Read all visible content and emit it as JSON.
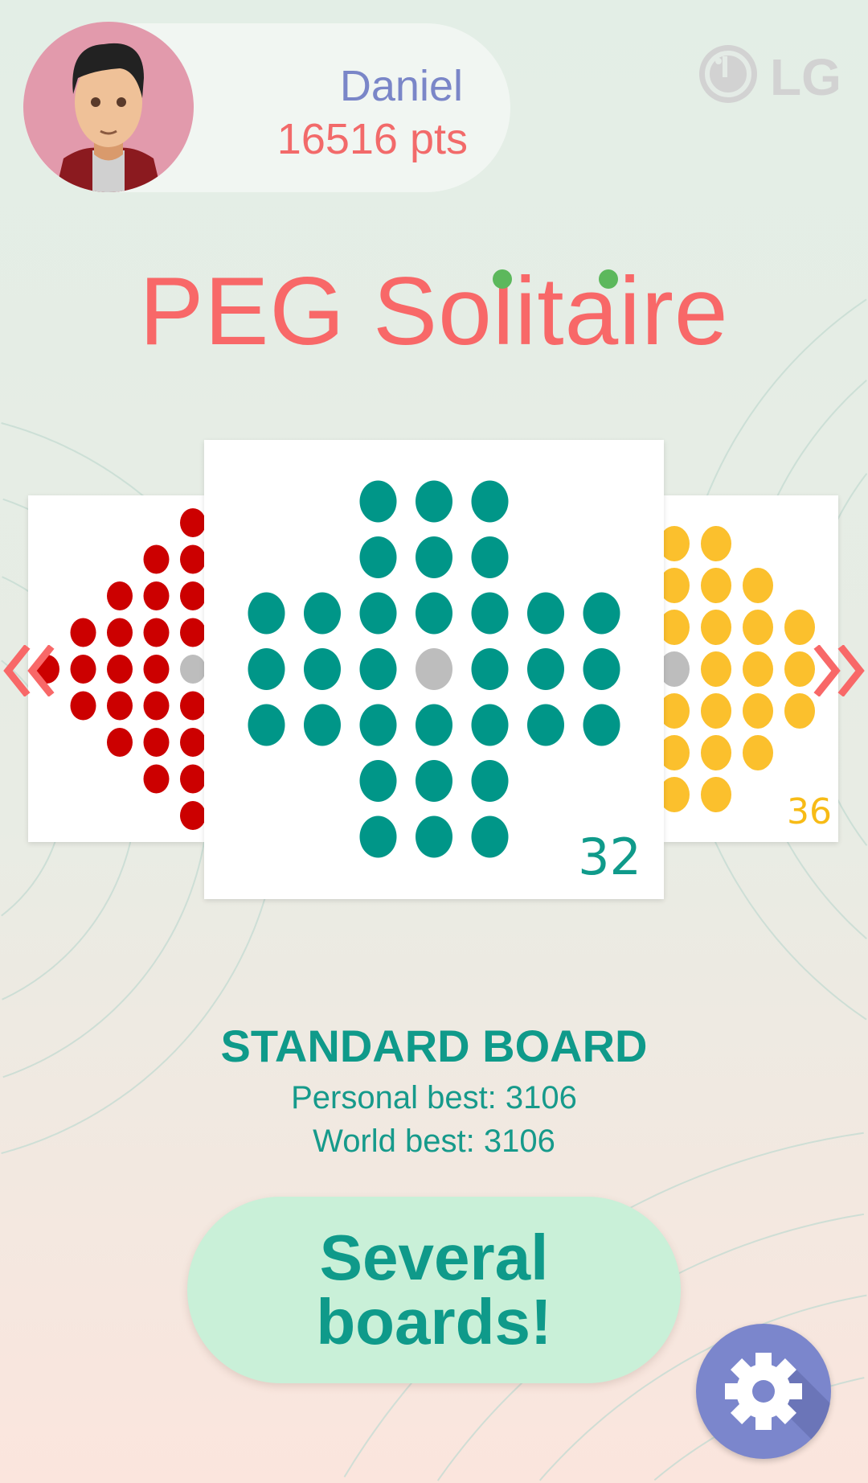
{
  "player": {
    "name": "Daniel",
    "points": "16516 pts",
    "avatar_icon": "man-avatar-icon"
  },
  "brand": {
    "logo": "LG"
  },
  "title": {
    "text": "PEG Solitaire",
    "dot_color": "#5cb85c",
    "color": "#f86868"
  },
  "carousel": {
    "prev_icon": "double-chevron-left-icon",
    "next_icon": "double-chevron-right-icon",
    "boards": [
      {
        "id": "diamond",
        "color": "#cc0000",
        "pegs": null
      },
      {
        "id": "standard",
        "color": "#009688",
        "pegs": "32"
      },
      {
        "id": "french",
        "color": "#fbc02d",
        "pegs": "36"
      }
    ],
    "empty_hole_color": "#bdbdbd"
  },
  "selected_board": {
    "name": "STANDARD BOARD",
    "personal_best": "Personal best: 3106",
    "world_best": "World best: 3106"
  },
  "promo_button": {
    "line1": "Several",
    "line2": "boards!"
  },
  "settings": {
    "icon": "gear-icon",
    "color": "#7b86cc"
  }
}
